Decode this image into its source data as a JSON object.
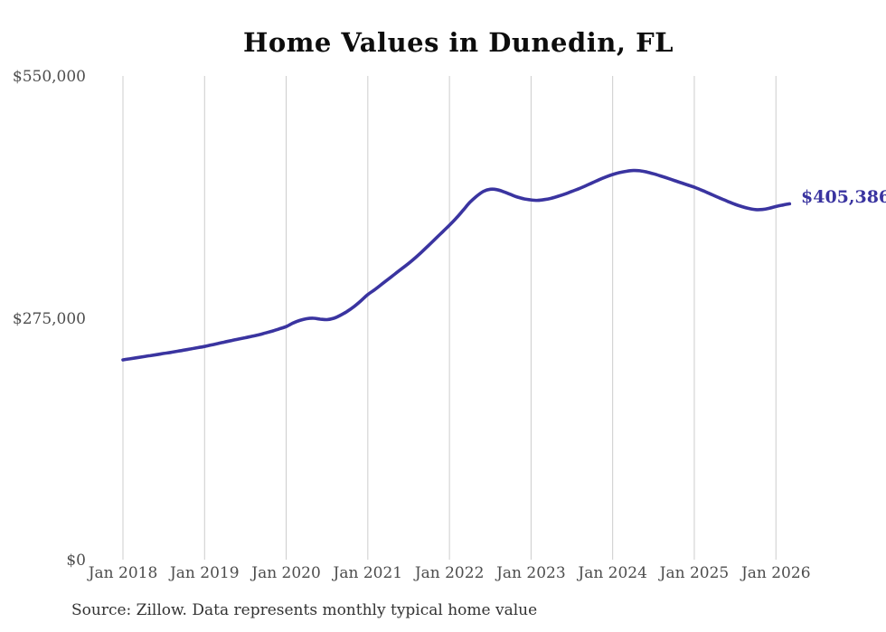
{
  "page": {
    "title": "Home Values in Dunedin, FL",
    "end_value_label": "$405,386",
    "source_note": "Source: Zillow. Data represents monthly typical home value"
  },
  "colors": {
    "line": "#3a34a0",
    "grid": "#cccccc",
    "axis_text": "#4d4d4d",
    "title_text": "#0d0d0d",
    "source_text": "#333333",
    "end_label_text": "#3a34a0"
  },
  "chart_data": {
    "type": "line",
    "title": "Home Values in Dunedin, FL",
    "xlabel": "",
    "ylabel": "",
    "ylim": [
      0,
      550000
    ],
    "y_tick_values": [
      0,
      275000,
      550000
    ],
    "y_tick_labels": [
      "$0",
      "$275,000",
      "$550,000"
    ],
    "x_tick_labels": [
      "Jan 2018",
      "Jan 2019",
      "Jan 2020",
      "Jan 2021",
      "Jan 2022",
      "Jan 2023",
      "Jan 2024",
      "Jan 2025",
      "Jan 2026"
    ],
    "x_tick_month_indices": [
      0,
      12,
      24,
      36,
      48,
      60,
      72,
      84,
      96
    ],
    "grid": "vertical-only",
    "legend": "none",
    "series": [
      {
        "name": "Monthly typical home value",
        "start_month": "2018-01",
        "cadence": "monthly",
        "values": [
          227600,
          228800,
          230000,
          231200,
          232400,
          233600,
          234900,
          236100,
          237400,
          238700,
          240100,
          241500,
          242900,
          244600,
          246300,
          248000,
          249700,
          251300,
          252900,
          254500,
          256300,
          258300,
          260500,
          262900,
          265500,
          269500,
          272500,
          274500,
          275000,
          274000,
          273500,
          275000,
          278500,
          283000,
          288500,
          295000,
          302000,
          307500,
          313500,
          319500,
          325500,
          331500,
          337500,
          344000,
          351000,
          358500,
          366000,
          373500,
          381000,
          389000,
          398000,
          407000,
          414000,
          419500,
          422000,
          421500,
          419000,
          416000,
          413000,
          411000,
          409800,
          409300,
          410200,
          411800,
          414000,
          416500,
          419500,
          422500,
          425800,
          429300,
          432800,
          436000,
          438800,
          440900,
          442400,
          443300,
          443000,
          441600,
          439600,
          437200,
          434700,
          432100,
          429500,
          426900,
          424300,
          421200,
          417900,
          414500,
          411100,
          407800,
          404800,
          402200,
          400100,
          398800,
          398900,
          400200,
          402300,
          404000,
          405386
        ]
      }
    ],
    "last_point": {
      "month": "2026-03",
      "value": 405386,
      "label": "$405,386"
    }
  }
}
